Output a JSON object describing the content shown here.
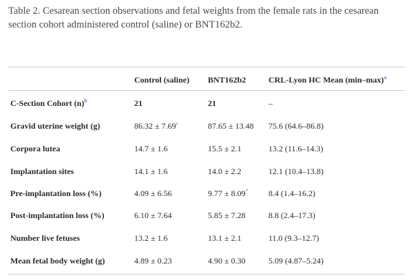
{
  "caption": {
    "line1": "Table 2. Cesarean section observations and fetal weights from the female rats in the cesarean",
    "line2": "section cohort administered control (saline) or BNT162b2."
  },
  "table": {
    "headers": [
      "",
      "Control (saline)",
      "BNT162b2",
      "CRL-Lyon HC Mean (min–max)"
    ],
    "header_sup": "a",
    "rows": [
      {
        "label": "C-Section Cohort (n)",
        "label_sup": "b",
        "control": "21",
        "control_sup": "",
        "bnt": "21",
        "bnt_sup": "",
        "crl": "–"
      },
      {
        "label": "Gravid uterine weight (g)",
        "label_sup": "",
        "control": "86.32 ± 7.69",
        "control_sup": "c",
        "bnt": "87.65 ± 13.48",
        "bnt_sup": "",
        "crl": "75.6 (64.6–86.8)"
      },
      {
        "label": "Corpora lutea",
        "label_sup": "",
        "control": "14.7 ± 1.6",
        "control_sup": "",
        "bnt": "15.5 ± 2.1",
        "bnt_sup": "",
        "crl": "13.2 (11.6–14.3)"
      },
      {
        "label": "Implantation sites",
        "label_sup": "",
        "control": "14.1 ± 1.6",
        "control_sup": "",
        "bnt": "14.0 ± 2.2",
        "bnt_sup": "",
        "crl": "12.1 (10.4–13.8)"
      },
      {
        "label": "Pre-implantation loss (%)",
        "label_sup": "",
        "control": "4.09 ± 6.56",
        "control_sup": "",
        "bnt": "9.77 ± 8.09",
        "bnt_sup": "*",
        "crl": "8.4 (1.4–16.2)"
      },
      {
        "label": "Post-implantation loss (%)",
        "label_sup": "",
        "control": "6.10 ± 7.64",
        "control_sup": "",
        "bnt": "5.85 ± 7.28",
        "bnt_sup": "",
        "crl": "8.8 (2.4–17.3)"
      },
      {
        "label": "Number live fetuses",
        "label_sup": "",
        "control": "13.2 ± 1.6",
        "control_sup": "",
        "bnt": "13.1 ± 2.1",
        "bnt_sup": "",
        "crl": "11.0 (9.3–12.7)"
      },
      {
        "label": "Mean fetal body weight (g)",
        "label_sup": "",
        "control": "4.89 ± 0.23",
        "control_sup": "",
        "bnt": "4.90 ± 0.30",
        "bnt_sup": "",
        "crl": "5.09 (4.87–5.24)"
      }
    ]
  }
}
